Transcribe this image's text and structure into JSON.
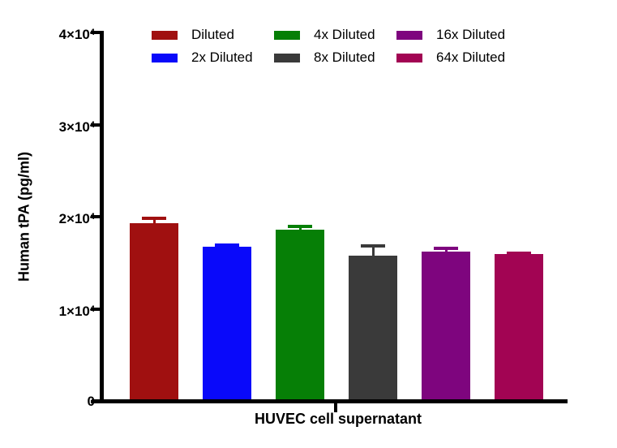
{
  "chart_data": {
    "type": "bar",
    "title": "",
    "xlabel": "HUVEC cell supernatant",
    "ylabel": "Human tPA (pg/ml)",
    "ylim": [
      0,
      40000
    ],
    "grid": false,
    "legend_position": "top",
    "axis_color": "#000000",
    "yticks": [
      {
        "value": 0,
        "base": "0",
        "exp": ""
      },
      {
        "value": 10000,
        "base": "1×10",
        "exp": "4"
      },
      {
        "value": 20000,
        "base": "2×10",
        "exp": "4"
      },
      {
        "value": 30000,
        "base": "3×10",
        "exp": "4"
      },
      {
        "value": 40000,
        "base": "4×10",
        "exp": "4"
      }
    ],
    "categories": [
      "HUVEC cell supernatant"
    ],
    "series": [
      {
        "name": "Diluted",
        "value": 19300,
        "error": 700,
        "color": "#A01010"
      },
      {
        "name": "2x Diluted",
        "value": 16800,
        "error": 300,
        "color": "#0909FA"
      },
      {
        "name": "4x Diluted",
        "value": 18600,
        "error": 500,
        "color": "#067F06"
      },
      {
        "name": "8x Diluted",
        "value": 15800,
        "error": 1200,
        "color": "#3A3A3A"
      },
      {
        "name": "16x Diluted",
        "value": 16200,
        "error": 600,
        "color": "#7E057E"
      },
      {
        "name": "64x Diluted",
        "value": 16000,
        "error": 200,
        "color": "#A20453"
      }
    ]
  }
}
